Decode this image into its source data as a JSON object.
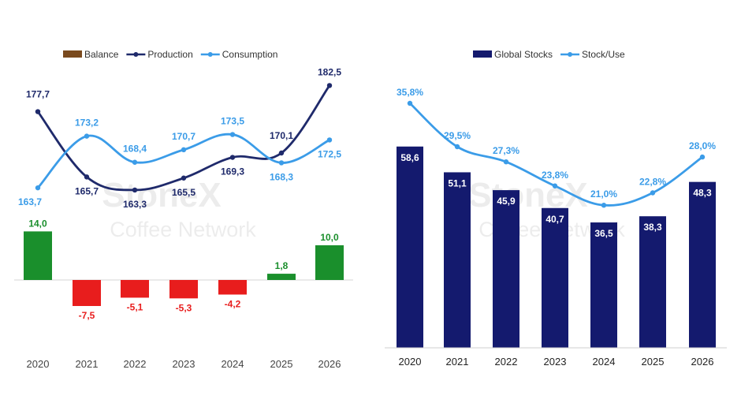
{
  "watermark": {
    "line1": "StoneX",
    "line2": "Coffee Network"
  },
  "chart_data": [
    {
      "type": "bar",
      "categories": [
        "2020",
        "2021",
        "2022",
        "2023",
        "2024",
        "2025",
        "2026"
      ],
      "legend_position": "top-left",
      "grid": false,
      "legend": [
        {
          "label": "Balance",
          "color": "#7a4a1e",
          "marker": "bar"
        },
        {
          "label": "Production",
          "color": "#1f2a6b",
          "marker": "line"
        },
        {
          "label": "Consumption",
          "color": "#3b9ce8",
          "marker": "line"
        }
      ],
      "series": [
        {
          "name": "Balance",
          "type": "bar",
          "values": [
            14.0,
            -7.5,
            -5.1,
            -5.3,
            -4.2,
            1.8,
            10.0
          ],
          "labels": [
            "14,0",
            "-7,5",
            "-5,1",
            "-5,3",
            "-4,2",
            "1,8",
            "10,0"
          ],
          "positive_color": "#1a8f2c",
          "negative_color": "#e81d1d"
        },
        {
          "name": "Production",
          "type": "line",
          "values": [
            177.7,
            165.7,
            163.3,
            165.5,
            169.3,
            170.1,
            182.5
          ],
          "labels": [
            "177,7",
            "165,7",
            "163,3",
            "165,5",
            "169,3",
            "170,1",
            "182,5"
          ],
          "color": "#1f2a6b"
        },
        {
          "name": "Consumption",
          "type": "line",
          "values": [
            163.7,
            173.2,
            168.4,
            170.7,
            173.5,
            168.3,
            172.5
          ],
          "labels": [
            "163,7",
            "173,2",
            "168,4",
            "170,7",
            "173,5",
            "168,3",
            "172,5"
          ],
          "color": "#3b9ce8"
        }
      ]
    },
    {
      "type": "bar",
      "categories": [
        "2020",
        "2021",
        "2022",
        "2023",
        "2024",
        "2025",
        "2026"
      ],
      "legend_position": "top-right",
      "grid": false,
      "legend": [
        {
          "label": "Global Stocks",
          "color": "#141a6e",
          "marker": "bar"
        },
        {
          "label": "Stock/Use",
          "color": "#3b9ce8",
          "marker": "line"
        }
      ],
      "series": [
        {
          "name": "Global Stocks",
          "type": "bar",
          "values": [
            58.6,
            51.1,
            45.9,
            40.7,
            36.5,
            38.3,
            48.3
          ],
          "labels": [
            "58,6",
            "51,1",
            "45,9",
            "40,7",
            "36,5",
            "38,3",
            "48,3"
          ],
          "color": "#141a6e"
        },
        {
          "name": "Stock/Use",
          "type": "line",
          "values": [
            35.8,
            29.5,
            27.3,
            23.8,
            21.0,
            22.8,
            28.0
          ],
          "labels": [
            "35,8%",
            "29,5%",
            "27,3%",
            "23,8%",
            "21,0%",
            "22,8%",
            "28,0%"
          ],
          "color": "#3b9ce8"
        }
      ]
    }
  ]
}
